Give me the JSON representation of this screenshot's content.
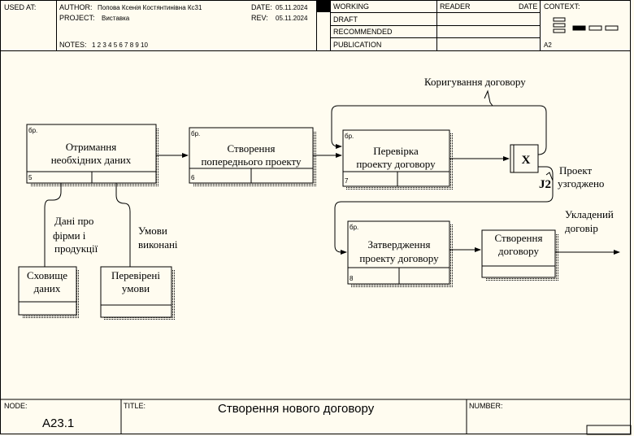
{
  "header": {
    "used_at_label": "USED AT:",
    "author_label": "AUTHOR:",
    "author_value": "Попова Ксенія Костянтинівна Кс31",
    "project_label": "PROJECT:",
    "project_value": "Виставка",
    "notes_label": "NOTES:",
    "notes_value": "1  2  3  4  5  6  7  8  9  10",
    "date_label": "DATE:",
    "date_value": "05.11.2024",
    "rev_label": "REV:",
    "rev_value": "05.11.2024",
    "status": [
      "WORKING",
      "DRAFT",
      "RECOMMENDED",
      "PUBLICATION"
    ],
    "reader_label": "READER",
    "reader_date_label": "DATE",
    "context_label": "CONTEXT:",
    "context_node": "A2"
  },
  "diagram": {
    "boxes": [
      {
        "id": "b5",
        "line1": "Отримання",
        "line2": "необхідних даних",
        "num": "5",
        "tag": "бр."
      },
      {
        "id": "b6",
        "line1": "Створення",
        "line2": "попереднього проекту",
        "num": "6",
        "tag": "бр."
      },
      {
        "id": "b7",
        "line1": "Перевірка",
        "line2": "проекту договору",
        "num": "7",
        "tag": "бр."
      },
      {
        "id": "b8",
        "line1": "Затвердження",
        "line2": "проекту договору",
        "num": "8",
        "tag": "бр."
      },
      {
        "id": "b9",
        "line1": "Створення",
        "line2": "договору"
      }
    ],
    "stores": [
      {
        "id": "s1",
        "line1": "Сховище",
        "line2": "даних"
      },
      {
        "id": "s2",
        "line1": "Перевірені",
        "line2": "умови"
      }
    ],
    "junction": {
      "symbol": "X",
      "label": "J2"
    },
    "labels": {
      "feedback": "Коригування договору",
      "agreed_1": "Проект",
      "agreed_2": "узгоджено",
      "result_1": "Укладений",
      "result_2": "договір",
      "data_1": "Дані про",
      "data_2": "фірми і",
      "data_3": "продукції",
      "cond_1": "Умови",
      "cond_2": "виконані"
    }
  },
  "footer": {
    "node_label": "NODE:",
    "node_value": "A23.1",
    "title_label": "TITLE:",
    "title_value": "Створення нового договору",
    "number_label": "NUMBER:"
  }
}
